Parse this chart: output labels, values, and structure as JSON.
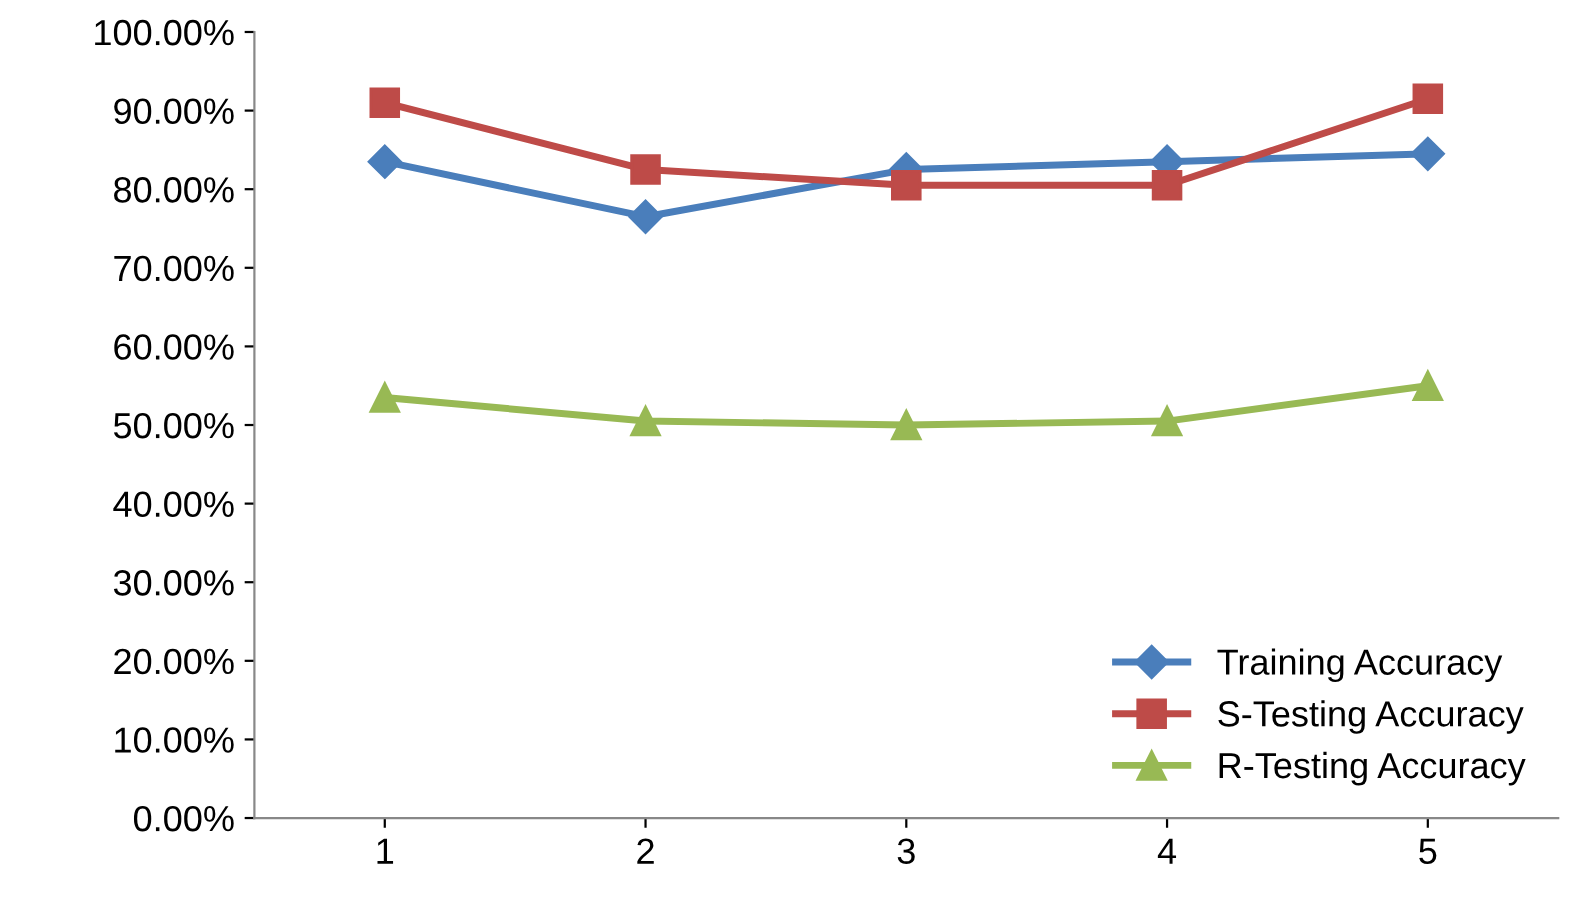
{
  "chart_data": {
    "type": "line",
    "categories": [
      "1",
      "2",
      "3",
      "4",
      "5"
    ],
    "series": [
      {
        "name": "Training Accuracy",
        "color": "#4a7ebb",
        "marker": "diamond",
        "values": [
          83.5,
          76.5,
          82.5,
          83.5,
          84.5
        ]
      },
      {
        "name": "S-Testing Accuracy",
        "color": "#be4b48",
        "marker": "square",
        "values": [
          91,
          82.5,
          80.5,
          80.5,
          91.5
        ]
      },
      {
        "name": "R-Testing Accuracy",
        "color": "#98b954",
        "marker": "triangle",
        "values": [
          53.5,
          50.5,
          50,
          50.5,
          55
        ]
      }
    ],
    "ylim": [
      0,
      100
    ],
    "yticks": [
      {
        "value": 0,
        "label": "0.00%"
      },
      {
        "value": 10,
        "label": "10.00%"
      },
      {
        "value": 20,
        "label": "20.00%"
      },
      {
        "value": 30,
        "label": "30.00%"
      },
      {
        "value": 40,
        "label": "40.00%"
      },
      {
        "value": 50,
        "label": "50.00%"
      },
      {
        "value": 60,
        "label": "60.00%"
      },
      {
        "value": 70,
        "label": "70.00%"
      },
      {
        "value": 80,
        "label": "80.00%"
      },
      {
        "value": 90,
        "label": "90.00%"
      },
      {
        "value": 100,
        "label": "100.00%"
      }
    ],
    "grid": false,
    "legend": "bottom right",
    "line_style": "solid"
  }
}
